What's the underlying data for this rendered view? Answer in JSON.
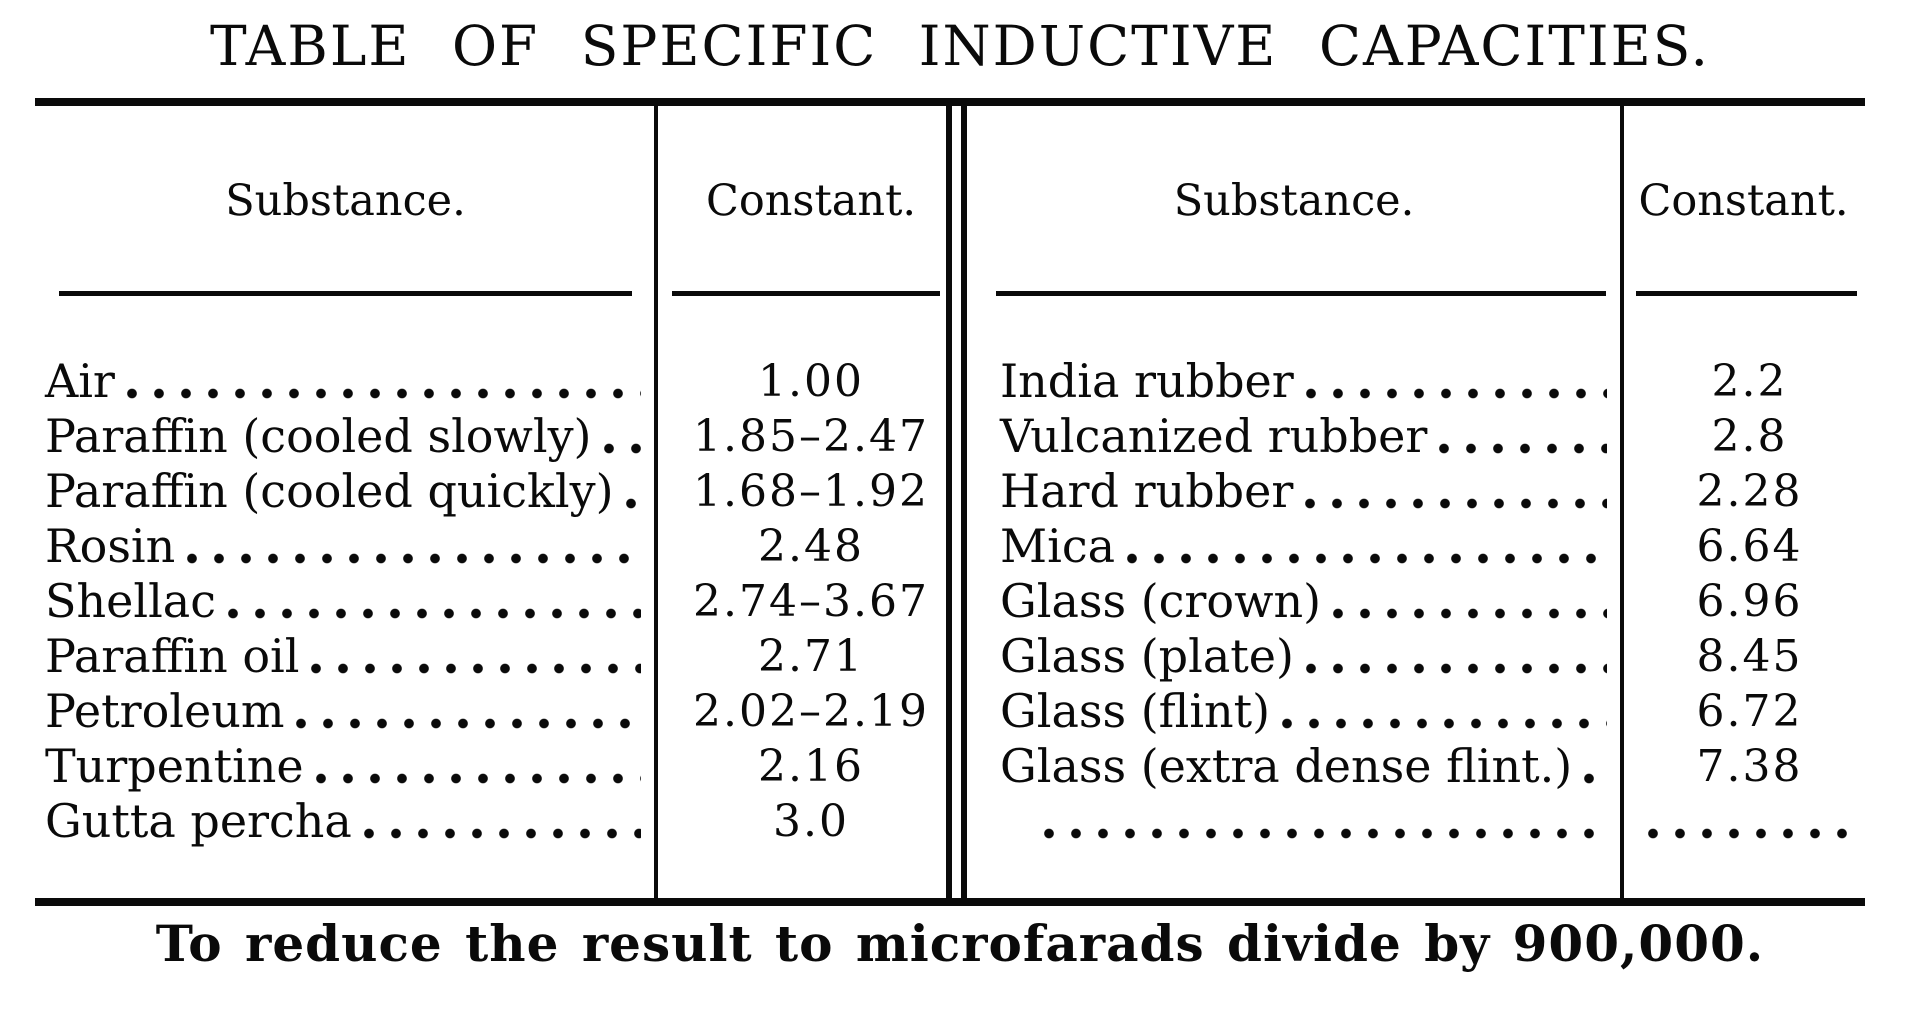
{
  "page": {
    "title": "TABLE OF SPECIFIC INDUCTIVE CAPACITIES.",
    "footnote": "To reduce the result to microfarads divide by 900,000."
  },
  "colors": {
    "ink": "#0a0a0a",
    "paper": "#ffffff"
  },
  "table": {
    "header": {
      "substance": "Substance.",
      "constant": "Constant."
    },
    "left_rows": [
      {
        "substance": "Air",
        "constant": "1.00"
      },
      {
        "substance": "Paraffin (cooled slowly)",
        "constant": "1.85–2.47"
      },
      {
        "substance": "Paraffin (cooled quickly)",
        "constant": "1.68–1.92"
      },
      {
        "substance": "Rosin",
        "constant": "2.48"
      },
      {
        "substance": "Shellac",
        "constant": "2.74–3.67"
      },
      {
        "substance": "Paraffin oil",
        "constant": "2.71"
      },
      {
        "substance": "Petroleum",
        "constant": "2.02–2.19"
      },
      {
        "substance": "Turpentine",
        "constant": "2.16"
      },
      {
        "substance": "Gutta percha",
        "constant": "3.0"
      }
    ],
    "right_rows": [
      {
        "substance": "India rubber",
        "constant": "2.2"
      },
      {
        "substance": "Vulcanized rubber",
        "constant": "2.8"
      },
      {
        "substance": "Hard rubber",
        "constant": "2.28"
      },
      {
        "substance": "Mica",
        "constant": "6.64"
      },
      {
        "substance": "Glass (crown)",
        "constant": "6.96"
      },
      {
        "substance": "Glass (plate)",
        "constant": "8.45"
      },
      {
        "substance": "Glass (flint)",
        "constant": "6.72"
      },
      {
        "substance": "Glass (extra dense flint.)",
        "constant": "7.38"
      },
      {
        "substance": "",
        "constant": ""
      }
    ]
  }
}
